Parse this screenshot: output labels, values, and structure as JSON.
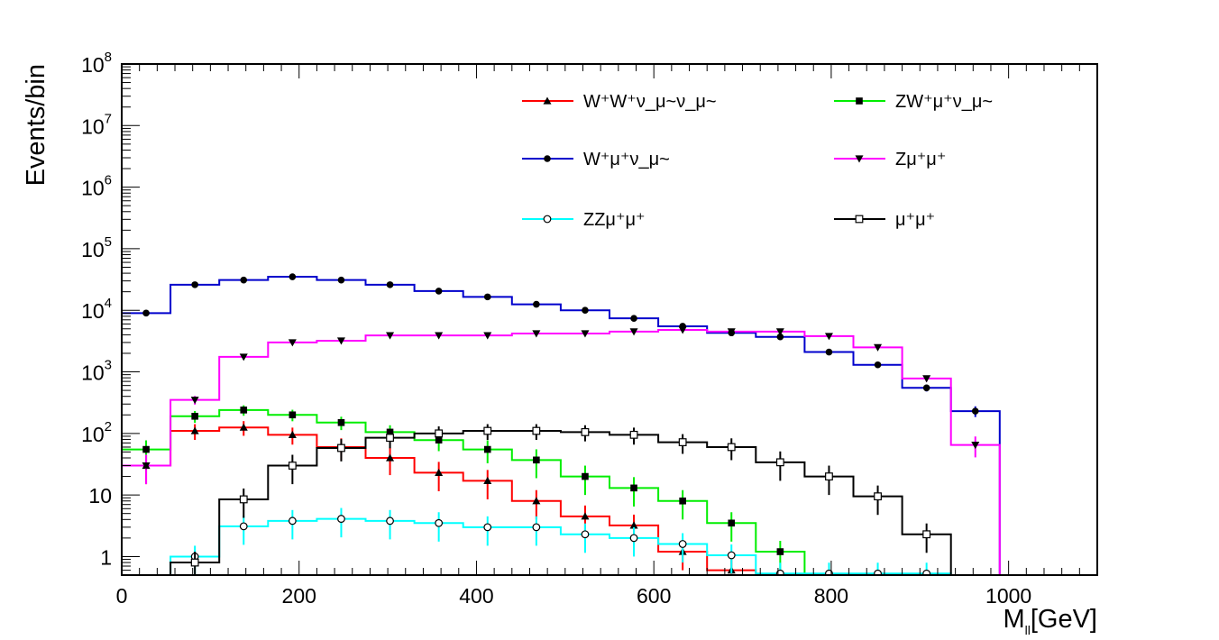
{
  "chart_data": {
    "type": "histogram",
    "title": "",
    "xlabel": "M",
    "xlabel_subscript": "ll",
    "xlabel_unit": "[GeV]",
    "ylabel": "Events/bin",
    "y_scale": "log",
    "xlim": [
      0,
      1100
    ],
    "ylim": [
      0.5,
      100000000
    ],
    "bin_width": 55,
    "x_ticks": [
      0,
      200,
      400,
      600,
      800,
      1000
    ],
    "x_tick_labels": [
      "0",
      "200",
      "400",
      "600",
      "800",
      "1000"
    ],
    "y_ticks": [
      {
        "value": 1,
        "base": "1",
        "exp": ""
      },
      {
        "value": 10,
        "base": "10",
        "exp": ""
      },
      {
        "value": 100,
        "base": "10",
        "exp": "2"
      },
      {
        "value": 1000,
        "base": "10",
        "exp": "3"
      },
      {
        "value": 10000,
        "base": "10",
        "exp": "4"
      },
      {
        "value": 100000,
        "base": "10",
        "exp": "5"
      },
      {
        "value": 1000000,
        "base": "10",
        "exp": "6"
      },
      {
        "value": 10000000,
        "base": "10",
        "exp": "7"
      },
      {
        "value": 100000000,
        "base": "10",
        "exp": "8"
      }
    ],
    "legend_position": "top-right",
    "series": [
      {
        "key": "wwvv",
        "name": "W⁺W⁺ν_μ~ν_μ~",
        "color": "#ff0000",
        "marker": "triangle-up",
        "values": [
          30,
          110,
          125,
          95,
          60,
          40,
          23,
          17,
          8,
          4.5,
          3.2,
          1.2,
          0.6,
          0
        ]
      },
      {
        "key": "zwv",
        "name": "ZW⁺μ⁺ν_μ~",
        "color": "#00ee00",
        "marker": "square-filled",
        "values": [
          55,
          190,
          240,
          200,
          150,
          105,
          78,
          55,
          37,
          20,
          13,
          8,
          3.5,
          1.2,
          0
        ]
      },
      {
        "key": "wv",
        "name": "W⁺μ⁺ν_μ~",
        "color": "#0000cc",
        "marker": "circle-filled",
        "values": [
          9000,
          26000,
          31000,
          35000,
          31000,
          26000,
          20500,
          16500,
          12500,
          10000,
          7400,
          5500,
          4300,
          3700,
          2100,
          1300,
          550,
          230
        ]
      },
      {
        "key": "zmm",
        "name": "Zμ⁺μ⁺",
        "color": "#ff00ff",
        "marker": "triangle-down",
        "values": [
          30,
          350,
          1750,
          3000,
          3200,
          3900,
          3900,
          3900,
          4200,
          4200,
          4500,
          4800,
          4500,
          4500,
          3800,
          2500,
          780,
          65
        ]
      },
      {
        "key": "zzmm",
        "name": "ZZμ⁺μ⁺",
        "color": "#00ffff",
        "marker": "circle-open",
        "values": [
          0,
          1,
          3.1,
          3.8,
          4.1,
          3.8,
          3.5,
          3.0,
          3.0,
          2.3,
          2.0,
          1.6,
          1.05,
          0.53,
          0.53,
          0.53,
          0.53
        ]
      },
      {
        "key": "mm",
        "name": "μ⁺μ⁺",
        "color": "#000000",
        "marker": "square-open",
        "values": [
          0,
          0.8,
          8.5,
          30,
          58,
          85,
          100,
          110,
          110,
          105,
          95,
          72,
          60,
          34,
          20,
          9.5,
          2.3
        ]
      }
    ]
  }
}
